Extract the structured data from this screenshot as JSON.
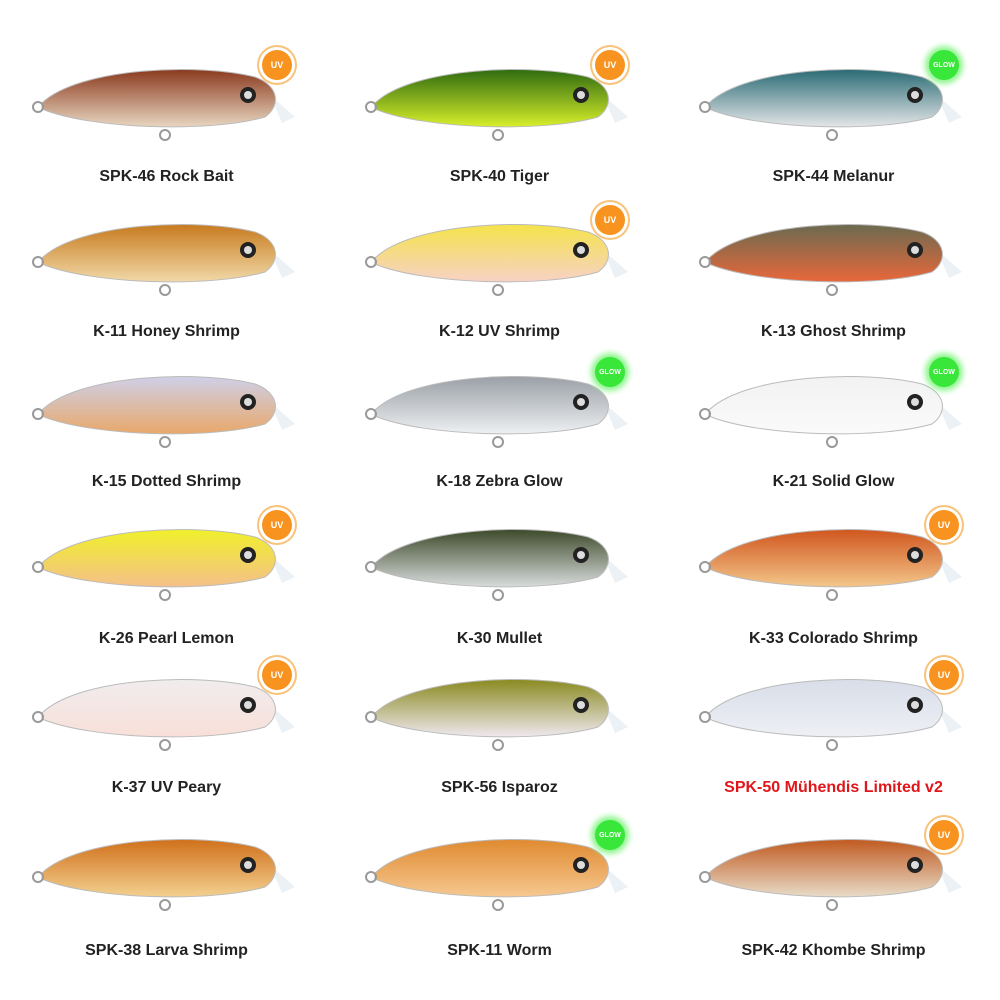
{
  "lures": [
    {
      "code_name": "SPK-46 Rock Bait",
      "badge": "UV",
      "back": "#8a3a1e",
      "belly": "#e8d6c0"
    },
    {
      "code_name": "SPK-40 Tiger",
      "badge": "UV",
      "back": "#2f6b10",
      "belly": "#d8ef2a"
    },
    {
      "code_name": "SPK-44 Melanur",
      "badge": "GLOW",
      "back": "#2a6b75",
      "belly": "#e4e6e8"
    },
    {
      "code_name": "K-11 Honey Shrimp",
      "badge": "",
      "back": "#c77a1e",
      "belly": "#f1d9a8"
    },
    {
      "code_name": "K-12 UV Shrimp",
      "badge": "UV",
      "back": "#f5e34a",
      "belly": "#f7d2c6"
    },
    {
      "code_name": "K-13 Ghost Shrimp",
      "badge": "",
      "back": "#6b6a50",
      "belly": "#e8683a"
    },
    {
      "code_name": "K-15 Dotted Shrimp",
      "badge": "",
      "back": "#cfd0e8",
      "belly": "#e8a86a"
    },
    {
      "code_name": "K-18 Zebra Glow",
      "badge": "GLOW",
      "back": "#9aa0a6",
      "belly": "#eef0f2"
    },
    {
      "code_name": "K-21 Solid Glow",
      "badge": "GLOW",
      "back": "#f2f2f2",
      "belly": "#fafafa"
    },
    {
      "code_name": "K-26 Pearl Lemon",
      "badge": "UV",
      "back": "#f0f02a",
      "belly": "#f4c08a"
    },
    {
      "code_name": "K-30 Mullet",
      "badge": "",
      "back": "#3d4a2a",
      "belly": "#d8dcdc"
    },
    {
      "code_name": "K-33 Colorado Shrimp",
      "badge": "UV",
      "back": "#d0561e",
      "belly": "#f3c68a"
    },
    {
      "code_name": "K-37 UV Peary",
      "badge": "UV",
      "back": "#f1ecee",
      "belly": "#f8e0d8"
    },
    {
      "code_name": "SPK-56 Isparoz",
      "badge": "",
      "back": "#8a8a20",
      "belly": "#efe8ef"
    },
    {
      "code_name": "SPK-50 Mühendis Limited v2",
      "badge": "UV",
      "back": "#d8dde8",
      "belly": "#eef0f5",
      "highlight": "#e0161b"
    },
    {
      "code_name": "SPK-38 Larva Shrimp",
      "badge": "",
      "back": "#d0701a",
      "belly": "#f3d090"
    },
    {
      "code_name": "SPK-11 Worm",
      "badge": "GLOW",
      "back": "#e08a30",
      "belly": "#f6c890"
    },
    {
      "code_name": "SPK-42 Khombe Shrimp",
      "badge": "UV",
      "back": "#c05a20",
      "belly": "#e8dcc8"
    }
  ]
}
